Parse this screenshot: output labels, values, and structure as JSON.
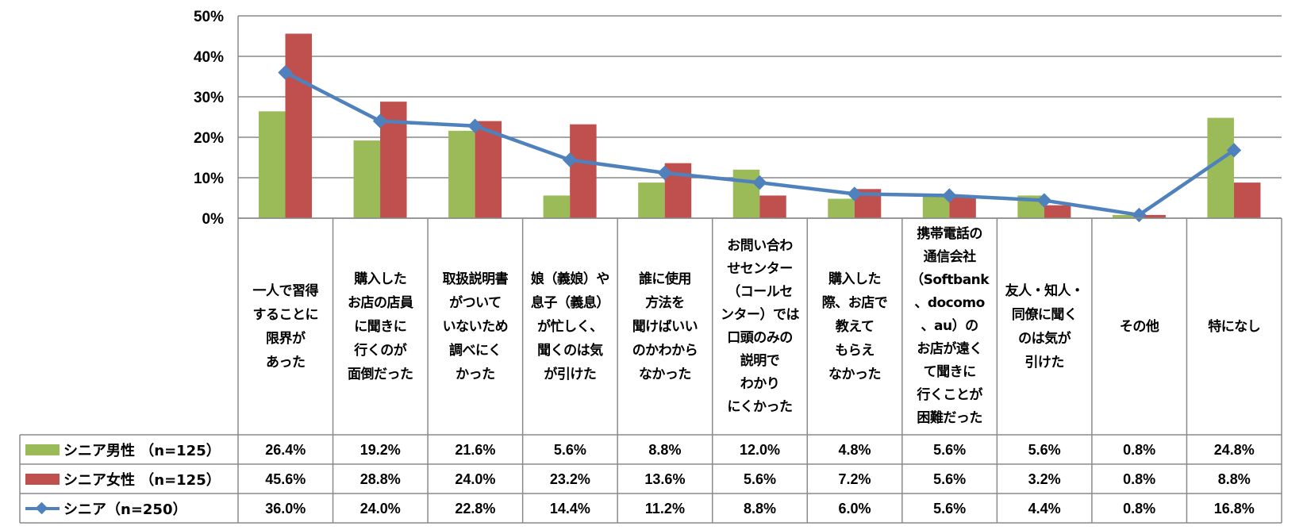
{
  "colors": {
    "male": "#9BBB59",
    "female": "#C0504D",
    "total": "#4F81BD",
    "grid": "#888888"
  },
  "chart_data": {
    "type": "bar",
    "combo": "grouped bar + line with data table",
    "title": "",
    "xlabel": "",
    "ylabel": "",
    "ylim": [
      0,
      50
    ],
    "yticks": [
      0,
      10,
      20,
      30,
      40,
      50
    ],
    "ytick_labels": [
      "0%",
      "10%",
      "20%",
      "30%",
      "40%",
      "50%"
    ],
    "grid": true,
    "legend": "left, inside data table",
    "categories": [
      "一人で習得\nすることに\n限界が\nあった",
      "購入した\nお店の店員\nに聞きに\n行くのが\n面倒だった",
      "取扱説明書\nがついて\nいないため\n調べにく\nかった",
      "娘（義娘）や\n息子（義息）\nが忙しく、\n聞くのは気\nが引けた",
      "誰に使用\n方法を\n聞けばいい\nのかわから\nなかった",
      "お問い合わ\nせセンター\n（コールセ\nンター）では\n口頭のみの\n説明で\nわかり\nにくかった",
      "購入した\n際、お店で\n教えて\nもらえ\nなかった",
      "携帯電話の\n通信会社\n（Softbank\n、docomo\n、au）の\nお店が遠く\nて聞きに\n行くことが\n困難だった",
      "友人・知人・\n同僚に聞く\nのは気が\n引けた",
      "その他",
      "特になし"
    ],
    "series": [
      {
        "name": "シニア男性 （n=125）",
        "type": "bar",
        "values": [
          26.4,
          19.2,
          21.6,
          5.6,
          8.8,
          12.0,
          4.8,
          5.6,
          5.6,
          0.8,
          24.8
        ],
        "labels": [
          "26.4%",
          "19.2%",
          "21.6%",
          "5.6%",
          "8.8%",
          "12.0%",
          "4.8%",
          "5.6%",
          "5.6%",
          "0.8%",
          "24.8%"
        ]
      },
      {
        "name": "シニア女性 （n=125）",
        "type": "bar",
        "values": [
          45.6,
          28.8,
          24.0,
          23.2,
          13.6,
          5.6,
          7.2,
          5.6,
          3.2,
          0.8,
          8.8
        ],
        "labels": [
          "45.6%",
          "28.8%",
          "24.0%",
          "23.2%",
          "13.6%",
          "5.6%",
          "7.2%",
          "5.6%",
          "3.2%",
          "0.8%",
          "8.8%"
        ]
      },
      {
        "name": "シニア（n=250）",
        "type": "line",
        "values": [
          36.0,
          24.0,
          22.8,
          14.4,
          11.2,
          8.8,
          6.0,
          5.6,
          4.4,
          0.8,
          16.8
        ],
        "labels": [
          "36.0%",
          "24.0%",
          "22.8%",
          "14.4%",
          "11.2%",
          "8.8%",
          "6.0%",
          "5.6%",
          "4.4%",
          "0.8%",
          "16.8%"
        ]
      }
    ]
  }
}
